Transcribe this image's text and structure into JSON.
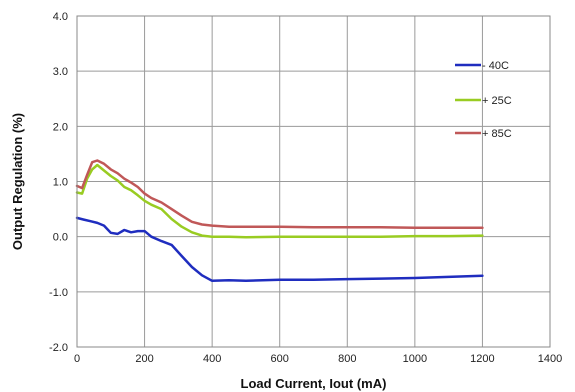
{
  "chart_data": {
    "type": "line",
    "title": "",
    "xlabel": "Load Current, Iout (mA)",
    "ylabel": "Output Regulation (%)",
    "xlim": [
      0,
      1400
    ],
    "ylim": [
      -2.0,
      4.0
    ],
    "x_ticks": [
      "0",
      "200",
      "400",
      "600",
      "800",
      "1000",
      "1200",
      "1400"
    ],
    "y_ticks": [
      "-2.0",
      "-1.0",
      "0.0",
      "1.0",
      "2.0",
      "3.0",
      "4.0"
    ],
    "grid": true,
    "legend_position": "right",
    "series": [
      {
        "name": "- 40C",
        "color": "#1f2dbf",
        "x": [
          0,
          20,
          40,
          60,
          80,
          100,
          120,
          140,
          160,
          180,
          200,
          220,
          250,
          280,
          310,
          340,
          370,
          400,
          450,
          500,
          600,
          700,
          800,
          900,
          1000,
          1100,
          1200
        ],
        "y": [
          0.34,
          0.31,
          0.28,
          0.25,
          0.2,
          0.07,
          0.05,
          0.12,
          0.08,
          0.1,
          0.1,
          0.0,
          -0.08,
          -0.15,
          -0.35,
          -0.55,
          -0.7,
          -0.8,
          -0.79,
          -0.8,
          -0.78,
          -0.78,
          -0.77,
          -0.76,
          -0.75,
          -0.73,
          -0.71
        ]
      },
      {
        "name": "+ 25C",
        "color": "#99cc22",
        "x": [
          0,
          15,
          30,
          45,
          60,
          80,
          100,
          120,
          140,
          160,
          180,
          200,
          220,
          250,
          280,
          310,
          340,
          370,
          400,
          450,
          500,
          600,
          700,
          800,
          900,
          1000,
          1100,
          1200
        ],
        "y": [
          0.8,
          0.78,
          1.05,
          1.22,
          1.3,
          1.2,
          1.1,
          1.02,
          0.9,
          0.84,
          0.75,
          0.65,
          0.58,
          0.5,
          0.32,
          0.18,
          0.08,
          0.02,
          0.0,
          0.0,
          -0.01,
          0.0,
          0.0,
          0.0,
          0.0,
          0.01,
          0.01,
          0.02
        ]
      },
      {
        "name": "+ 85C",
        "color": "#c05858",
        "x": [
          0,
          15,
          30,
          45,
          60,
          80,
          100,
          120,
          140,
          160,
          180,
          200,
          220,
          250,
          280,
          310,
          340,
          370,
          400,
          450,
          500,
          600,
          700,
          800,
          900,
          1000,
          1100,
          1200
        ],
        "y": [
          0.92,
          0.88,
          1.12,
          1.35,
          1.38,
          1.32,
          1.22,
          1.15,
          1.05,
          0.98,
          0.9,
          0.78,
          0.7,
          0.62,
          0.5,
          0.38,
          0.27,
          0.22,
          0.2,
          0.18,
          0.18,
          0.18,
          0.17,
          0.17,
          0.17,
          0.16,
          0.16,
          0.16
        ]
      }
    ]
  }
}
